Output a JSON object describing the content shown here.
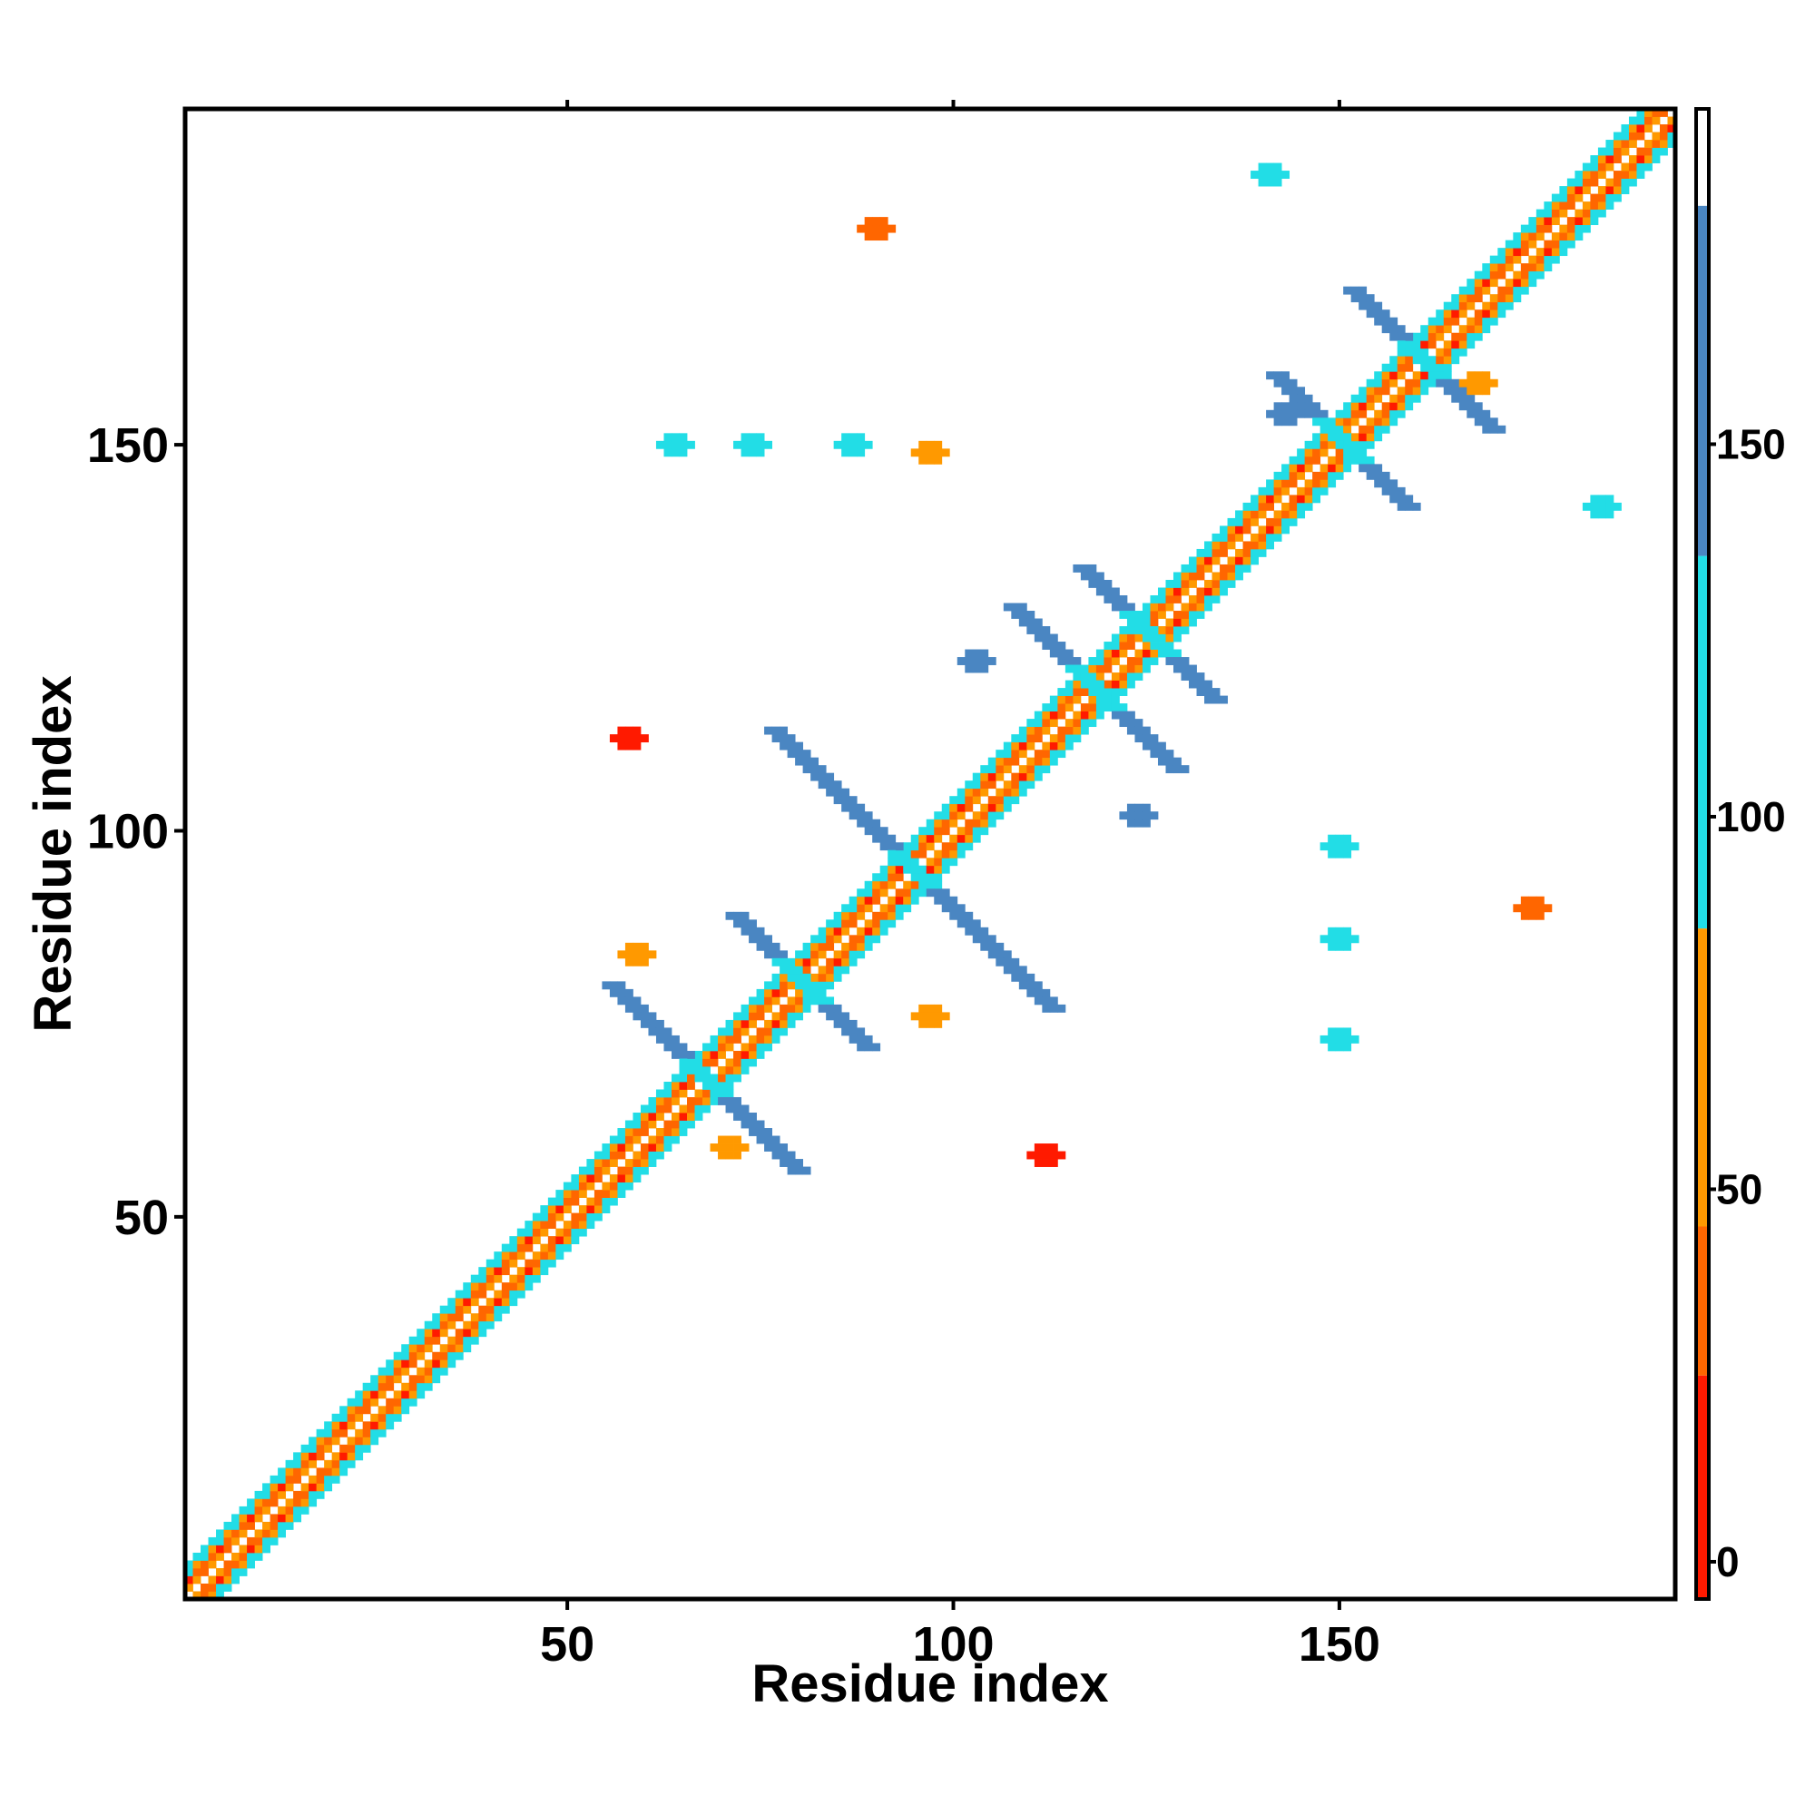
{
  "chart_data": {
    "type": "heatmap",
    "xlabel": "Residue index",
    "ylabel": "Residue index",
    "xlim": [
      1,
      193
    ],
    "ylim": [
      1,
      193
    ],
    "xticks": [
      50,
      100,
      150
    ],
    "yticks": [
      50,
      100,
      150
    ],
    "colorbar": {
      "range": [
        -5,
        195
      ],
      "ticks": [
        0,
        50,
        100,
        150
      ],
      "bins": [
        {
          "from": -5,
          "to": 25,
          "color": "#ff1a00"
        },
        {
          "from": 25,
          "to": 45,
          "color": "#ff6600"
        },
        {
          "from": 45,
          "to": 85,
          "color": "#ff9900"
        },
        {
          "from": 85,
          "to": 135,
          "color": "#22dde6"
        },
        {
          "from": 135,
          "to": 182,
          "color": "#4a86c2"
        },
        {
          "from": 182,
          "to": 195,
          "color": "#ffffff"
        }
      ]
    },
    "diagonal": {
      "from": 1,
      "to": 193
    },
    "strands": [
      {
        "id": 1,
        "start": 56,
        "end": 80,
        "direction": "antidiagonal"
      },
      {
        "id": 2,
        "start": 72,
        "end": 89,
        "direction": "antidiagonal"
      },
      {
        "id": 3,
        "start": 77,
        "end": 113,
        "direction": "antidiagonal"
      },
      {
        "id": 4,
        "start": 108,
        "end": 129,
        "direction": "antidiagonal"
      },
      {
        "id": 5,
        "start": 117,
        "end": 134,
        "direction": "antidiagonal"
      },
      {
        "id": 6,
        "start": 142,
        "end": 159,
        "direction": "antidiagonal"
      },
      {
        "id": 7,
        "start": 152,
        "end": 170,
        "direction": "antidiagonal"
      }
    ],
    "patches": [
      {
        "x": 58,
        "y": 112,
        "value": 5
      },
      {
        "x": 112,
        "y": 58,
        "value": 5
      },
      {
        "x": 90,
        "y": 178,
        "value": 40
      },
      {
        "x": 74,
        "y": 150,
        "value": 100
      },
      {
        "x": 87,
        "y": 150,
        "value": 100
      },
      {
        "x": 97,
        "y": 149,
        "value": 60
      },
      {
        "x": 64,
        "y": 150,
        "value": 100
      },
      {
        "x": 143,
        "y": 154,
        "value": 150
      },
      {
        "x": 150,
        "y": 98,
        "value": 100
      },
      {
        "x": 150,
        "y": 86,
        "value": 100
      },
      {
        "x": 150,
        "y": 73,
        "value": 100
      },
      {
        "x": 175,
        "y": 90,
        "value": 40
      },
      {
        "x": 168,
        "y": 158,
        "value": 60
      },
      {
        "x": 184,
        "y": 142,
        "value": 100
      },
      {
        "x": 141,
        "y": 185,
        "value": 100
      },
      {
        "x": 103,
        "y": 122,
        "value": 150
      },
      {
        "x": 124,
        "y": 102,
        "value": 150
      },
      {
        "x": 71,
        "y": 59,
        "value": 60
      },
      {
        "x": 59,
        "y": 84,
        "value": 60
      },
      {
        "x": 97,
        "y": 76,
        "value": 60
      }
    ]
  }
}
